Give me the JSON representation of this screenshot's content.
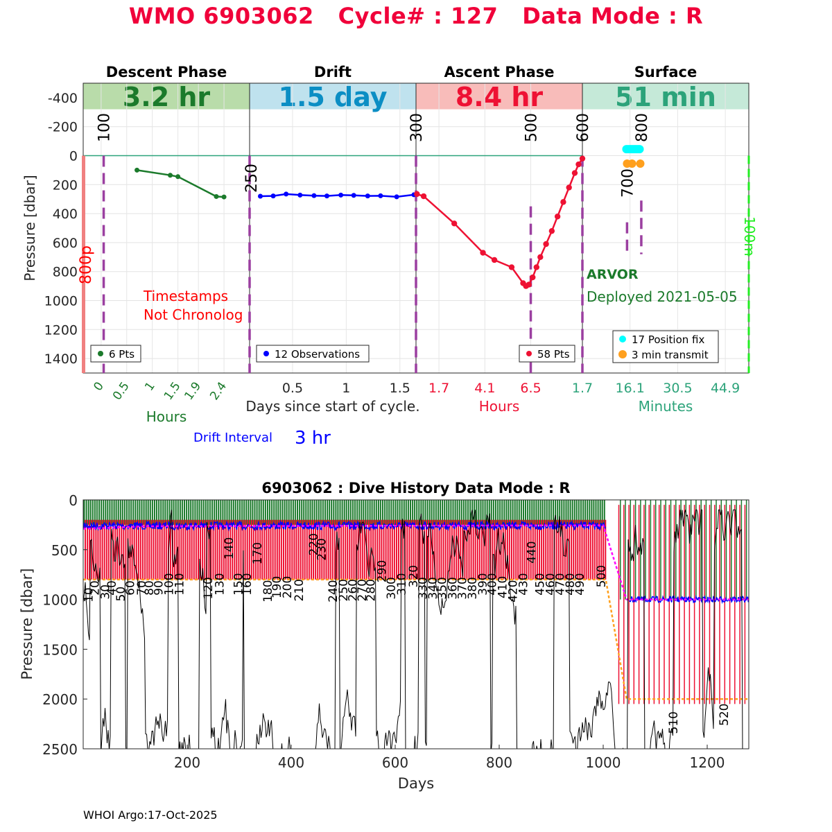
{
  "header": {
    "title": "WMO 6903062   Cycle# : 127   Data Mode : R"
  },
  "footer": {
    "credit": "WHOI Argo:17-Oct-2025"
  },
  "colors": {
    "descent": "#1b7a2b",
    "descent_bg": "#b9dcaa",
    "drift": "#0000ff",
    "drift_bg": "#bfe2ee",
    "drift_text": "#0b8ec4",
    "ascent": "#ee1133",
    "ascent_bg": "#f8bcba",
    "surface": "#2ca37a",
    "surface_bg": "#c5e9d8",
    "marker": "#9b3fa0",
    "title": "#f0003a",
    "orange": "#ffa01e",
    "cyan": "#00ffff"
  },
  "chart_data": [
    {
      "type": "line",
      "name": "cycle-phases",
      "ylabel": "Pressure [dbar]",
      "ylim": [
        -500,
        1500
      ],
      "yticks": [
        -400,
        -200,
        0,
        200,
        400,
        600,
        800,
        1000,
        1200,
        1400
      ],
      "phases": [
        {
          "key": "descent",
          "label": "Descent Phase",
          "duration": "3.2 hr",
          "xlabel": "Hours",
          "ticks": [
            "0",
            "0.5",
            "1",
            "1.5",
            "1.9",
            "2.4"
          ],
          "xlim": [
            -0.35,
            2.9
          ],
          "legend": "6 Pts",
          "points": [
            [
              0.7,
              100
            ],
            [
              1.35,
              135
            ],
            [
              1.5,
              145
            ],
            [
              2.25,
              282
            ],
            [
              2.4,
              285
            ]
          ]
        },
        {
          "key": "drift",
          "label": "Drift",
          "duration": "1.5 day",
          "xlabel": "Days since start of cycle.",
          "ticks": [
            "0.5",
            "1",
            "1.5"
          ],
          "xlim": [
            0.1,
            1.65
          ],
          "legend": "12 Observations",
          "points": [
            [
              0.2,
              280
            ],
            [
              0.32,
              278
            ],
            [
              0.44,
              265
            ],
            [
              0.57,
              272
            ],
            [
              0.7,
              276
            ],
            [
              0.82,
              278
            ],
            [
              0.95,
              272
            ],
            [
              1.07,
              274
            ],
            [
              1.2,
              278
            ],
            [
              1.32,
              277
            ],
            [
              1.47,
              284
            ],
            [
              1.63,
              270
            ]
          ]
        },
        {
          "key": "ascent",
          "label": "Ascent Phase",
          "duration": "8.4 hr",
          "xlabel": "Hours",
          "ticks": [
            "1.7",
            "4.1",
            "6.5"
          ],
          "xlim": [
            0.5,
            9.2
          ],
          "legend": "58 Pts",
          "points": [
            [
              0.55,
              265
            ],
            [
              0.9,
              280
            ],
            [
              2.5,
              468
            ],
            [
              4.0,
              670
            ],
            [
              4.6,
              720
            ],
            [
              5.5,
              770
            ],
            [
              6.1,
              880
            ],
            [
              6.25,
              900
            ],
            [
              6.4,
              890
            ],
            [
              6.6,
              840
            ],
            [
              6.8,
              770
            ],
            [
              7.0,
              700
            ],
            [
              7.3,
              610
            ],
            [
              7.6,
              520
            ],
            [
              7.9,
              420
            ],
            [
              8.2,
              320
            ],
            [
              8.5,
              220
            ],
            [
              8.8,
              120
            ],
            [
              9.0,
              60
            ],
            [
              9.2,
              20
            ]
          ]
        },
        {
          "key": "surface",
          "label": "Surface",
          "duration": "51 min",
          "xlabel": "Minutes",
          "ticks": [
            "1.7",
            "16.1",
            "30.5",
            "44.9"
          ],
          "xlim": [
            1.7,
            52
          ],
          "legend_fix": "17 Position fix",
          "legend_tx": "3 min transmit",
          "fix_points": [
            [
              15.0,
              -45
            ],
            [
              15.5,
              -45
            ],
            [
              16.0,
              -45
            ],
            [
              16.5,
              -45
            ],
            [
              17.0,
              -45
            ],
            [
              17.5,
              -45
            ],
            [
              18.0,
              -45
            ],
            [
              18.5,
              -45
            ],
            [
              19.0,
              -45
            ]
          ],
          "transmit_points": [
            [
              15.2,
              55
            ],
            [
              16.7,
              55
            ],
            [
              19.2,
              55
            ]
          ]
        }
      ],
      "events": [
        {
          "label": "100",
          "phase": "descent",
          "x": 0.05
        },
        {
          "label": "250",
          "phase": "descent",
          "x": 2.9
        },
        {
          "label": "300",
          "phase": "drift",
          "x": 1.65
        },
        {
          "label": "500",
          "phase": "ascent",
          "x": 6.5
        },
        {
          "label": "600",
          "phase": "ascent",
          "x": 9.2
        },
        {
          "label": "700",
          "phase": "surface",
          "x": 15.2
        },
        {
          "label": "800",
          "phase": "surface",
          "x": 19.5
        }
      ],
      "annotations": {
        "left_marker": "800p",
        "right_marker": "100m",
        "warning": "Timestamps\nNot Chronolog",
        "float_type": "ARVOR",
        "deployed": "Deployed 2021-05-05",
        "drift_interval_label": "Drift Interval",
        "drift_interval_value": "3 hr"
      }
    },
    {
      "type": "line",
      "name": "dive-history",
      "title": "6903062 : Dive History      Data Mode : R",
      "xlabel": "Days",
      "ylabel": "Pressure [dbar]",
      "xlim": [
        0,
        1280
      ],
      "ylim": [
        0,
        2500
      ],
      "xticks": [
        200,
        400,
        600,
        800,
        1000,
        1200
      ],
      "yticks": [
        0,
        500,
        1000,
        1500,
        2000,
        2500
      ],
      "cycle_labels": [
        {
          "t": "10",
          "x": 10,
          "y": 1030
        },
        {
          "t": "20",
          "x": 22,
          "y": 960
        },
        {
          "t": "30",
          "x": 42,
          "y": 1000
        },
        {
          "t": "40",
          "x": 55,
          "y": 960
        },
        {
          "t": "50",
          "x": 72,
          "y": 1020
        },
        {
          "t": "60",
          "x": 90,
          "y": 960
        },
        {
          "t": "70",
          "x": 112,
          "y": 960
        },
        {
          "t": "80",
          "x": 127,
          "y": 960
        },
        {
          "t": "90",
          "x": 145,
          "y": 960
        },
        {
          "t": "100",
          "x": 165,
          "y": 960
        },
        {
          "t": "110",
          "x": 185,
          "y": 960
        },
        {
          "t": "120",
          "x": 240,
          "y": 1000
        },
        {
          "t": "130",
          "x": 262,
          "y": 960
        },
        {
          "t": "140",
          "x": 280,
          "y": 600
        },
        {
          "t": "150",
          "x": 298,
          "y": 960
        },
        {
          "t": "160",
          "x": 315,
          "y": 960
        },
        {
          "t": "170",
          "x": 335,
          "y": 650
        },
        {
          "t": "180",
          "x": 355,
          "y": 1030
        },
        {
          "t": "190",
          "x": 372,
          "y": 990
        },
        {
          "t": "200",
          "x": 392,
          "y": 990
        },
        {
          "t": "210",
          "x": 415,
          "y": 1020
        },
        {
          "t": "220",
          "x": 443,
          "y": 560
        },
        {
          "t": "230",
          "x": 458,
          "y": 610
        },
        {
          "t": "240",
          "x": 480,
          "y": 1030
        },
        {
          "t": "250",
          "x": 500,
          "y": 1020
        },
        {
          "t": "260",
          "x": 518,
          "y": 1020
        },
        {
          "t": "270",
          "x": 536,
          "y": 1020
        },
        {
          "t": "280",
          "x": 553,
          "y": 1020
        },
        {
          "t": "290",
          "x": 574,
          "y": 830
        },
        {
          "t": "300",
          "x": 592,
          "y": 1000
        },
        {
          "t": "310",
          "x": 612,
          "y": 960
        },
        {
          "t": "320",
          "x": 635,
          "y": 880
        },
        {
          "t": "330",
          "x": 653,
          "y": 1000
        },
        {
          "t": "340",
          "x": 672,
          "y": 1000
        },
        {
          "t": "350",
          "x": 690,
          "y": 1000
        },
        {
          "t": "360",
          "x": 710,
          "y": 1000
        },
        {
          "t": "370",
          "x": 729,
          "y": 1000
        },
        {
          "t": "380",
          "x": 748,
          "y": 1000
        },
        {
          "t": "390",
          "x": 768,
          "y": 960
        },
        {
          "t": "400",
          "x": 786,
          "y": 960
        },
        {
          "t": "410",
          "x": 806,
          "y": 990
        },
        {
          "t": "420",
          "x": 826,
          "y": 1030
        },
        {
          "t": "430",
          "x": 846,
          "y": 960
        },
        {
          "t": "440",
          "x": 862,
          "y": 640
        },
        {
          "t": "450",
          "x": 878,
          "y": 960
        },
        {
          "t": "460",
          "x": 898,
          "y": 960
        },
        {
          "t": "470",
          "x": 917,
          "y": 960
        },
        {
          "t": "480",
          "x": 936,
          "y": 960
        },
        {
          "t": "490",
          "x": 955,
          "y": 960
        },
        {
          "t": "500",
          "x": 996,
          "y": 880
        },
        {
          "t": "510",
          "x": 1135,
          "y": 2350
        },
        {
          "t": "520",
          "x": 1232,
          "y": 2270
        }
      ]
    }
  ]
}
